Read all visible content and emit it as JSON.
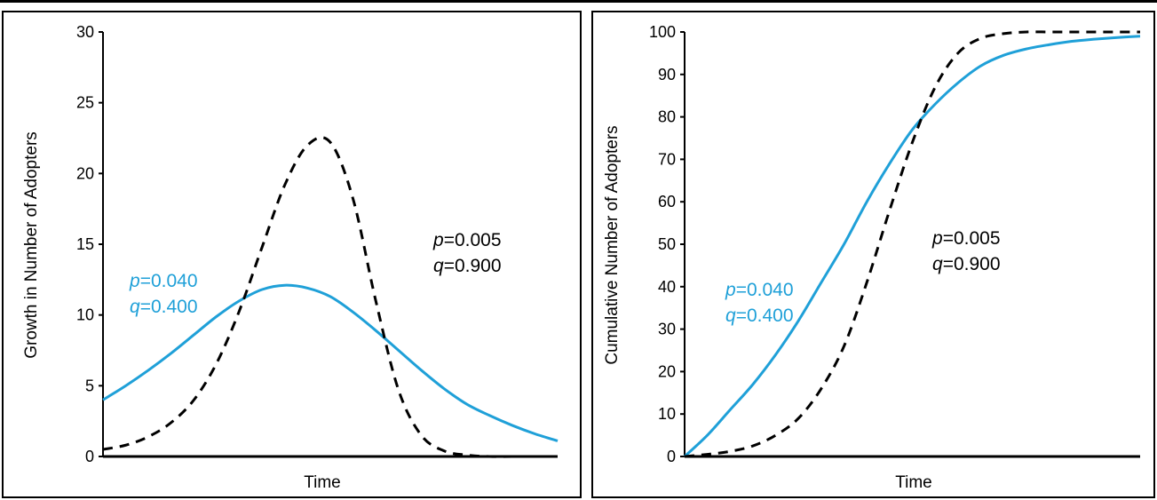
{
  "chart_data": [
    {
      "type": "line",
      "xlabel": "Time",
      "ylabel": "Growth in Number of Adopters",
      "ylim": [
        0,
        30
      ],
      "yticks": [
        0,
        5,
        10,
        15,
        20,
        25,
        30
      ],
      "grid": false,
      "x_ticks_labeled": false,
      "series": [
        {
          "color": "#1fa0d8",
          "style": "solid",
          "params": {
            "p": "0.040",
            "q": "0.400"
          },
          "x": [
            0,
            1,
            2,
            3,
            4,
            5,
            6,
            7,
            8,
            9,
            10,
            11,
            12,
            13,
            14,
            15,
            16,
            17,
            18,
            19,
            20
          ],
          "values": [
            4.0,
            5.0,
            6.1,
            7.3,
            8.6,
            9.9,
            11.0,
            11.8,
            12.1,
            11.9,
            11.3,
            10.2,
            8.9,
            7.5,
            6.1,
            4.8,
            3.7,
            2.9,
            2.2,
            1.6,
            1.1
          ]
        },
        {
          "color": "#000000",
          "style": "dashed",
          "params": {
            "p": "0.005",
            "q": "0.900"
          },
          "x": [
            0,
            1,
            2,
            3,
            4,
            5,
            6,
            7,
            8,
            9,
            10,
            11,
            12,
            13,
            14,
            15,
            16,
            17,
            18,
            19,
            20
          ],
          "values": [
            0.5,
            0.8,
            1.4,
            2.4,
            4.0,
            6.6,
            10.3,
            14.8,
            19.2,
            22.0,
            22.2,
            18.2,
            11.0,
            4.7,
            1.5,
            0.4,
            0.1,
            0.0,
            0.0,
            0.0,
            0.0
          ]
        }
      ],
      "annotations": [
        {
          "p_label": "p",
          "p_value": "=0.040",
          "q_label": "q",
          "q_value": "=0.400",
          "color": "#1fa0d8"
        },
        {
          "p_label": "p",
          "p_value": "=0.005",
          "q_label": "q",
          "q_value": "=0.900",
          "color": "#000000"
        }
      ]
    },
    {
      "type": "line",
      "xlabel": "Time",
      "ylabel": "Cumulative Number of Adopters",
      "ylim": [
        0,
        100
      ],
      "yticks": [
        0,
        10,
        20,
        30,
        40,
        50,
        60,
        70,
        80,
        90,
        100
      ],
      "grid": false,
      "x_ticks_labeled": false,
      "series": [
        {
          "color": "#1fa0d8",
          "style": "solid",
          "params": {
            "p": "0.040",
            "q": "0.400"
          },
          "x": [
            0,
            1,
            2,
            3,
            4,
            5,
            6,
            7,
            8,
            9,
            10,
            11,
            12,
            13,
            14,
            15,
            16,
            17,
            18,
            19,
            20
          ],
          "values": [
            0,
            5,
            11,
            17,
            24,
            32,
            41,
            50,
            60,
            69,
            77,
            83,
            88,
            92,
            94.5,
            96,
            97,
            97.8,
            98.3,
            98.7,
            99
          ]
        },
        {
          "color": "#000000",
          "style": "dashed",
          "params": {
            "p": "0.005",
            "q": "0.900"
          },
          "x": [
            0,
            1,
            2,
            3,
            4,
            5,
            6,
            7,
            8,
            9,
            10,
            11,
            12,
            13,
            14,
            15,
            16,
            17,
            18,
            19,
            20
          ],
          "values": [
            0,
            0.5,
            1.2,
            2.5,
            5,
            9,
            16,
            26,
            41,
            58,
            74,
            87,
            95,
            98.5,
            99.6,
            100,
            100,
            100,
            100,
            100,
            100
          ]
        }
      ],
      "annotations": [
        {
          "p_label": "p",
          "p_value": "=0.040",
          "q_label": "q",
          "q_value": "=0.400",
          "color": "#1fa0d8"
        },
        {
          "p_label": "p",
          "p_value": "=0.005",
          "q_label": "q",
          "q_value": "=0.900",
          "color": "#000000"
        }
      ]
    }
  ]
}
